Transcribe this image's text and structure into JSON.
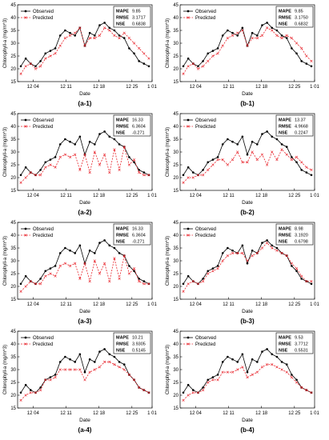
{
  "figure": {
    "panels": [
      {
        "label": "(a-1)",
        "stats": {
          "MAPE": "9.85",
          "RMSE": "3.1717",
          "NSE": "0.6838"
        }
      },
      {
        "label": "(b-1)",
        "stats": {
          "MAPE": "9.85",
          "RMSE": "3.1750",
          "NSE": "0.6832"
        }
      },
      {
        "label": "(a-2)",
        "stats": {
          "MAPE": "16.33",
          "RMSE": "6.3604",
          "NSE": "-0.271"
        }
      },
      {
        "label": "(b-2)",
        "stats": {
          "MAPE": "13.37",
          "RMSE": "4.9668",
          "NSE": "0.2247"
        }
      },
      {
        "label": "(a-3)",
        "stats": {
          "MAPE": "16.33",
          "RMSE": "6.3604",
          "NSE": "-0.271"
        }
      },
      {
        "label": "(b-3)",
        "stats": {
          "MAPE": "8.98",
          "RMSE": "3.1920",
          "NSE": "0.6798"
        }
      },
      {
        "label": "(a-4)",
        "stats": {
          "MAPE": "10.21",
          "RMSE": "3.9305",
          "NSE": "0.5145"
        }
      },
      {
        "label": "(b-4)",
        "stats": {
          "MAPE": "9.53",
          "RMSE": "3.7712",
          "NSE": "0.5531"
        }
      }
    ]
  },
  "chart_data": [
    {
      "type": "line",
      "panel": "(a-1)",
      "xlabel": "Date",
      "ylabel": "Chlorophyll-a (mg/m^3)",
      "ylim": [
        15,
        45
      ],
      "x_ticks": [
        "12 04",
        "12 11",
        "12 18",
        "12 25",
        "1 01"
      ],
      "y_ticks": [
        15,
        20,
        25,
        30,
        35,
        40,
        45
      ],
      "series": [
        {
          "name": "Observed",
          "color": "#000000",
          "values": [
            21,
            24,
            22,
            21,
            23,
            26,
            27,
            28,
            33,
            35,
            34,
            33,
            36,
            29,
            34,
            33,
            37,
            38,
            36,
            35,
            33,
            32,
            28,
            26,
            23,
            22,
            21
          ]
        },
        {
          "name": "Predicted",
          "color": "#e8262d",
          "values": [
            18,
            21,
            22,
            20,
            21,
            24,
            25,
            26,
            29,
            32,
            33,
            34,
            36,
            29,
            32,
            32,
            33,
            36,
            35,
            33,
            32,
            34,
            32,
            30,
            28,
            26,
            24
          ]
        }
      ]
    },
    {
      "type": "line",
      "panel": "(b-1)",
      "xlabel": "Date",
      "ylabel": "Chlorophyll-a (mg/m^3)",
      "ylim": [
        15,
        45
      ],
      "x_ticks": [
        "12 04",
        "12 11",
        "12 18",
        "12 25",
        "1 01"
      ],
      "y_ticks": [
        15,
        20,
        25,
        30,
        35,
        40,
        45
      ],
      "series": [
        {
          "name": "Observed",
          "color": "#000000",
          "values": [
            21,
            24,
            22,
            21,
            23,
            26,
            27,
            28,
            33,
            35,
            34,
            33,
            36,
            29,
            34,
            33,
            37,
            38,
            36,
            35,
            33,
            32,
            28,
            26,
            23,
            22,
            21
          ]
        },
        {
          "name": "Predicted",
          "color": "#e8262d",
          "values": [
            18,
            21,
            22,
            20,
            21,
            23,
            25,
            26,
            29,
            32,
            33,
            34,
            35,
            29,
            32,
            32,
            33,
            36,
            35,
            33,
            32,
            33,
            32,
            30,
            28,
            25,
            23
          ]
        }
      ]
    },
    {
      "type": "line",
      "panel": "(a-2)",
      "xlabel": "Date",
      "ylabel": "Chlorophyll-a (mg/m^3)",
      "ylim": [
        15,
        45
      ],
      "x_ticks": [
        "12 04",
        "12 11",
        "12 18",
        "12 25",
        "1 01"
      ],
      "y_ticks": [
        15,
        20,
        25,
        30,
        35,
        40,
        45
      ],
      "series": [
        {
          "name": "Observed",
          "color": "#000000",
          "values": [
            21,
            24,
            22,
            21,
            23,
            26,
            27,
            28,
            33,
            35,
            34,
            33,
            36,
            29,
            34,
            33,
            37,
            38,
            36,
            35,
            33,
            32,
            28,
            26,
            23,
            22,
            21
          ]
        },
        {
          "name": "Predicted",
          "color": "#e8262d",
          "values": [
            18,
            20,
            22,
            21,
            21,
            24,
            25,
            24,
            28,
            29,
            28,
            29,
            23,
            29,
            22,
            30,
            25,
            29,
            22,
            31,
            23,
            32,
            25,
            27,
            22,
            21,
            21
          ]
        }
      ]
    },
    {
      "type": "line",
      "panel": "(b-2)",
      "xlabel": "Date",
      "ylabel": "Chlorophyll-a (mg/m^3)",
      "ylim": [
        15,
        45
      ],
      "x_ticks": [
        "12 04",
        "12 11",
        "12 18",
        "12 25",
        "1 01"
      ],
      "y_ticks": [
        15,
        20,
        25,
        30,
        35,
        40,
        45
      ],
      "series": [
        {
          "name": "Observed",
          "color": "#000000",
          "values": [
            21,
            24,
            22,
            21,
            23,
            26,
            27,
            28,
            33,
            35,
            34,
            33,
            36,
            29,
            34,
            33,
            37,
            38,
            36,
            35,
            33,
            32,
            28,
            26,
            23,
            22,
            21
          ]
        },
        {
          "name": "Predicted",
          "color": "#e8262d",
          "values": [
            18,
            20,
            20,
            21,
            21,
            23,
            25,
            27,
            27,
            25,
            27,
            30,
            26,
            26,
            30,
            27,
            29,
            25,
            30,
            27,
            31,
            29,
            27,
            28,
            26,
            24,
            23
          ]
        }
      ]
    },
    {
      "type": "line",
      "panel": "(a-3)",
      "xlabel": "Date",
      "ylabel": "Chlorophyll-a (mg/m^3)",
      "ylim": [
        15,
        45
      ],
      "x_ticks": [
        "12 04",
        "12 11",
        "12 18",
        "12 25",
        "1 01"
      ],
      "y_ticks": [
        15,
        20,
        25,
        30,
        35,
        40,
        45
      ],
      "series": [
        {
          "name": "Observed",
          "color": "#000000",
          "values": [
            21,
            24,
            22,
            21,
            23,
            26,
            27,
            28,
            33,
            35,
            34,
            33,
            36,
            29,
            34,
            33,
            37,
            38,
            36,
            35,
            33,
            32,
            28,
            26,
            23,
            22,
            21
          ]
        },
        {
          "name": "Predicted",
          "color": "#e8262d",
          "values": [
            18,
            20,
            22,
            21,
            21,
            24,
            25,
            24,
            28,
            29,
            28,
            29,
            23,
            29,
            22,
            30,
            25,
            29,
            22,
            31,
            23,
            32,
            25,
            27,
            22,
            21,
            21
          ]
        }
      ]
    },
    {
      "type": "line",
      "panel": "(b-3)",
      "xlabel": "Date",
      "ylabel": "Chlorophyll-a (mg/m^3)",
      "ylim": [
        15,
        45
      ],
      "x_ticks": [
        "12 04",
        "12 11",
        "12 18",
        "12 25",
        "1 01"
      ],
      "y_ticks": [
        15,
        20,
        25,
        30,
        35,
        40,
        45
      ],
      "series": [
        {
          "name": "Observed",
          "color": "#000000",
          "values": [
            21,
            24,
            22,
            21,
            23,
            26,
            27,
            28,
            33,
            35,
            34,
            33,
            36,
            29,
            34,
            33,
            37,
            38,
            36,
            35,
            33,
            32,
            28,
            26,
            23,
            22,
            21
          ]
        },
        {
          "name": "Predicted",
          "color": "#e8262d",
          "values": [
            18,
            21,
            22,
            21,
            22,
            25,
            26,
            27,
            30,
            32,
            33,
            33,
            33,
            30,
            32,
            33,
            35,
            37,
            35,
            34,
            33,
            32,
            29,
            27,
            24,
            22,
            22
          ]
        }
      ]
    },
    {
      "type": "line",
      "panel": "(a-4)",
      "xlabel": "Date",
      "ylabel": "Chlorophyll-a (mg/m^3)",
      "ylim": [
        15,
        45
      ],
      "x_ticks": [
        "12 04",
        "12 11",
        "12 18",
        "12 25",
        "1 01"
      ],
      "y_ticks": [
        15,
        20,
        25,
        30,
        35,
        40,
        45
      ],
      "series": [
        {
          "name": "Observed",
          "color": "#000000",
          "values": [
            21,
            24,
            22,
            21,
            23,
            26,
            27,
            28,
            33,
            35,
            34,
            33,
            36,
            29,
            34,
            33,
            37,
            38,
            36,
            35,
            33,
            32,
            28,
            26,
            23,
            22,
            21
          ]
        },
        {
          "name": "Predicted",
          "color": "#e8262d",
          "values": [
            18,
            20,
            21,
            21,
            22,
            26,
            26,
            27,
            30,
            30,
            30,
            30,
            30,
            26,
            29,
            30,
            31,
            33,
            33,
            32,
            31,
            30,
            28,
            26,
            23,
            22,
            21
          ]
        }
      ]
    },
    {
      "type": "line",
      "panel": "(b-4)",
      "xlabel": "Date",
      "ylabel": "Chlorophyll-a (mg/m^3)",
      "ylim": [
        15,
        45
      ],
      "x_ticks": [
        "12 04",
        "12 11",
        "12 18",
        "12 25",
        "1 01"
      ],
      "y_ticks": [
        15,
        20,
        25,
        30,
        35,
        40,
        45
      ],
      "series": [
        {
          "name": "Observed",
          "color": "#000000",
          "values": [
            21,
            24,
            22,
            21,
            23,
            26,
            27,
            28,
            33,
            35,
            34,
            33,
            36,
            29,
            34,
            33,
            37,
            38,
            36,
            35,
            33,
            32,
            28,
            26,
            23,
            22,
            21
          ]
        },
        {
          "name": "Predicted",
          "color": "#e8262d",
          "values": [
            18,
            20,
            21,
            21,
            22,
            25,
            26,
            26,
            29,
            29,
            29,
            30,
            31,
            27,
            28,
            29,
            31,
            32,
            32,
            31,
            30,
            29,
            27,
            25,
            23,
            22,
            21
          ]
        }
      ]
    }
  ]
}
